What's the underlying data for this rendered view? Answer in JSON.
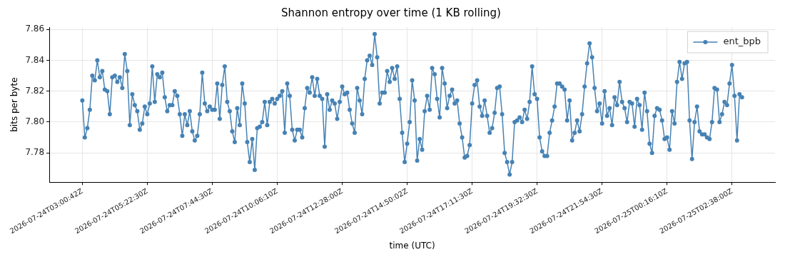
{
  "chart_data": {
    "type": "line",
    "title": "Shannon entropy over time (1 KB rolling)",
    "xlabel": "time (UTC)",
    "ylabel": "bits per byte",
    "categories": [
      "2026-07-24T03:00:42Z",
      null,
      null,
      null,
      null,
      null,
      null,
      null,
      null,
      null,
      null,
      null,
      null,
      null,
      null,
      null,
      null,
      null,
      null,
      null,
      null,
      null,
      null,
      null,
      null,
      null,
      "2026-07-24T05:22:30Z",
      null,
      null,
      null,
      null,
      null,
      null,
      null,
      null,
      null,
      null,
      null,
      null,
      null,
      null,
      null,
      null,
      null,
      null,
      null,
      null,
      null,
      null,
      null,
      null,
      null,
      "2026-07-24T07:44:30Z",
      null,
      null,
      null,
      null,
      null,
      null,
      null,
      null,
      null,
      null,
      null,
      null,
      null,
      null,
      null,
      null,
      null,
      null,
      null,
      null,
      null,
      null,
      null,
      null,
      null,
      "2026-07-24T10:06:10Z",
      null,
      null,
      null,
      null,
      null,
      null,
      null,
      null,
      null,
      null,
      null,
      null,
      null,
      null,
      null,
      null,
      null,
      null,
      null,
      null,
      null,
      null,
      null,
      null,
      null,
      "2026-07-24T12:28:00Z",
      null,
      null,
      null,
      null,
      null,
      null,
      null,
      null,
      null,
      null,
      null,
      null,
      null,
      null,
      null,
      null,
      null,
      null,
      null,
      null,
      null,
      null,
      null,
      null,
      null,
      "2026-07-24T14:50:02Z",
      null,
      null,
      null,
      null,
      null,
      null,
      null,
      null,
      null,
      null,
      null,
      null,
      null,
      null,
      null,
      null,
      null,
      null,
      null,
      null,
      null,
      null,
      null,
      null,
      null,
      "2026-07-24T17:11:30Z",
      null,
      null,
      null,
      null,
      null,
      null,
      null,
      null,
      null,
      null,
      null,
      null,
      null,
      null,
      null,
      null,
      null,
      null,
      null,
      null,
      null,
      null,
      null,
      null,
      null,
      "2026-07-24T19:32:30Z",
      null,
      null,
      null,
      null,
      null,
      null,
      null,
      null,
      null,
      null,
      null,
      null,
      null,
      null,
      null,
      null,
      null,
      null,
      null,
      null,
      null,
      null,
      null,
      null,
      null,
      "2026-07-24T21:54:30Z",
      null,
      null,
      null,
      null,
      null,
      null,
      null,
      null,
      null,
      null,
      null,
      null,
      null,
      null,
      null,
      null,
      null,
      null,
      null,
      null,
      null,
      null,
      null,
      null,
      null,
      "2026-07-25T00:16:10Z",
      null,
      null,
      null,
      null,
      null,
      null,
      null,
      null,
      null,
      null,
      null,
      null,
      null,
      null,
      null,
      null,
      null,
      null,
      null,
      null,
      null,
      null,
      null,
      null,
      null,
      "2026-07-25T02:38:00Z",
      null,
      null,
      null,
      null
    ],
    "series": [
      {
        "name": "ent_bpb",
        "color": "#4682b4",
        "values": [
          7.814,
          7.79,
          7.796,
          7.808,
          7.83,
          7.827,
          7.84,
          7.829,
          7.833,
          7.821,
          7.82,
          7.805,
          7.829,
          7.83,
          7.826,
          7.829,
          7.822,
          7.844,
          7.833,
          7.798,
          7.818,
          7.811,
          7.807,
          7.795,
          7.799,
          7.81,
          7.805,
          7.812,
          7.836,
          7.813,
          7.831,
          7.829,
          7.832,
          7.816,
          7.807,
          7.811,
          7.811,
          7.82,
          7.817,
          7.805,
          7.791,
          7.805,
          7.798,
          7.807,
          7.794,
          7.788,
          7.791,
          7.805,
          7.832,
          7.812,
          7.807,
          7.81,
          7.808,
          7.808,
          7.825,
          7.802,
          7.824,
          7.836,
          7.813,
          7.807,
          7.794,
          7.787,
          7.809,
          7.798,
          7.825,
          7.812,
          7.787,
          7.774,
          7.789,
          7.769,
          7.796,
          7.797,
          7.8,
          7.813,
          7.798,
          7.813,
          7.815,
          7.812,
          7.815,
          7.817,
          7.82,
          7.793,
          7.825,
          7.817,
          7.795,
          7.788,
          7.795,
          7.795,
          7.79,
          7.809,
          7.822,
          7.819,
          7.829,
          7.817,
          7.828,
          7.817,
          7.815,
          7.784,
          7.818,
          7.808,
          7.814,
          7.812,
          7.802,
          7.813,
          7.823,
          7.818,
          7.819,
          7.808,
          7.799,
          7.793,
          7.822,
          7.814,
          7.805,
          7.828,
          7.84,
          7.843,
          7.837,
          7.857,
          7.842,
          7.812,
          7.819,
          7.819,
          7.833,
          7.826,
          7.835,
          7.828,
          7.836,
          7.815,
          7.793,
          7.774,
          7.786,
          7.8,
          7.827,
          7.814,
          7.775,
          7.789,
          7.782,
          7.807,
          7.817,
          7.808,
          7.835,
          7.831,
          7.815,
          7.803,
          7.835,
          7.825,
          7.809,
          7.817,
          7.821,
          7.812,
          7.814,
          7.799,
          7.79,
          7.777,
          7.778,
          7.785,
          7.812,
          7.824,
          7.827,
          7.81,
          7.804,
          7.814,
          7.804,
          7.793,
          7.796,
          7.806,
          7.822,
          7.823,
          7.805,
          7.78,
          7.774,
          7.766,
          7.774,
          7.8,
          7.801,
          7.803,
          7.8,
          7.808,
          7.802,
          7.813,
          7.836,
          7.818,
          7.815,
          7.79,
          7.781,
          7.778,
          7.778,
          7.793,
          7.801,
          7.81,
          7.825,
          7.825,
          7.823,
          7.821,
          7.801,
          7.814,
          7.788,
          7.793,
          7.801,
          7.794,
          7.805,
          7.823,
          7.838,
          7.851,
          7.842,
          7.822,
          7.807,
          7.812,
          7.799,
          7.82,
          7.804,
          7.809,
          7.798,
          7.816,
          7.811,
          7.826,
          7.813,
          7.809,
          7.8,
          7.813,
          7.812,
          7.797,
          7.815,
          7.811,
          7.795,
          7.819,
          7.807,
          7.786,
          7.78,
          7.804,
          7.809,
          7.808,
          7.801,
          7.789,
          7.79,
          7.782,
          7.807,
          7.799,
          7.826,
          7.839,
          7.828,
          7.838,
          7.839,
          7.801,
          7.776,
          7.8,
          7.81,
          7.794,
          7.792,
          7.792,
          7.79,
          7.789,
          7.8,
          7.822,
          7.821,
          7.8,
          7.805,
          7.813,
          7.811,
          7.825,
          7.837,
          7.817,
          7.788,
          7.818,
          7.816
        ]
      }
    ],
    "ylim": [
      7.761,
      7.8615
    ],
    "yticks": [
      7.78,
      {
        "value": 7.8,
        "label": "7.80"
      },
      7.82,
      7.84,
      7.86
    ],
    "grid": true,
    "legend": "top right",
    "marker": "circle",
    "line_style": "solid"
  }
}
